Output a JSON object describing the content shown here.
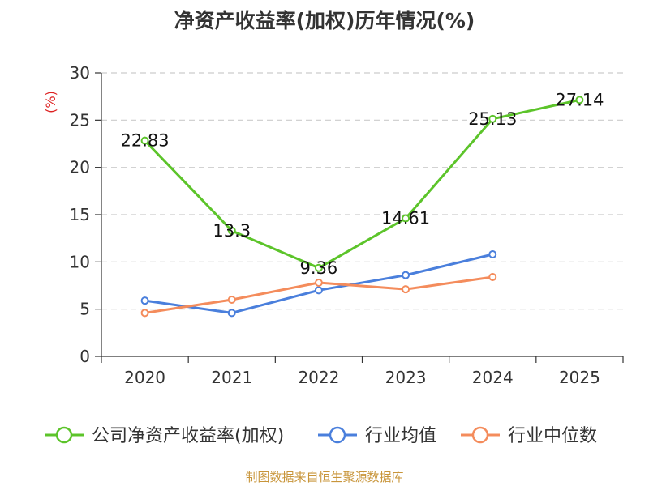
{
  "chart_data": {
    "type": "line",
    "title": "净资产收益率(加权)历年情况(%)",
    "ylabel": "(%)",
    "xlabel": "",
    "ylim": [
      0,
      30
    ],
    "yticks": [
      0,
      5,
      10,
      15,
      20,
      25,
      30
    ],
    "grid": true,
    "legend_position": "bottom",
    "categories": [
      "2020",
      "2021",
      "2022",
      "2023",
      "2024",
      "2025"
    ],
    "series": [
      {
        "name": "公司净资产收益率(加权)",
        "values": [
          22.83,
          13.3,
          9.36,
          14.61,
          25.13,
          27.14
        ],
        "labels": [
          "22.83",
          "13.3",
          "9.36",
          "14.61",
          "25.13",
          "27.14"
        ],
        "color": "#5cc42a"
      },
      {
        "name": "行业均值",
        "values": [
          5.9,
          4.6,
          7.0,
          8.6,
          10.8,
          null
        ],
        "color": "#4a7fdc"
      },
      {
        "name": "行业中位数",
        "values": [
          4.6,
          6.0,
          7.8,
          7.1,
          8.4,
          null
        ],
        "color": "#f48c5c"
      }
    ]
  },
  "source": "制图数据来自恒生聚源数据库",
  "colors": {
    "axis": "#333333",
    "grid": "#cccccc",
    "ylabel": "#dd2222",
    "source": "#c8953a"
  }
}
